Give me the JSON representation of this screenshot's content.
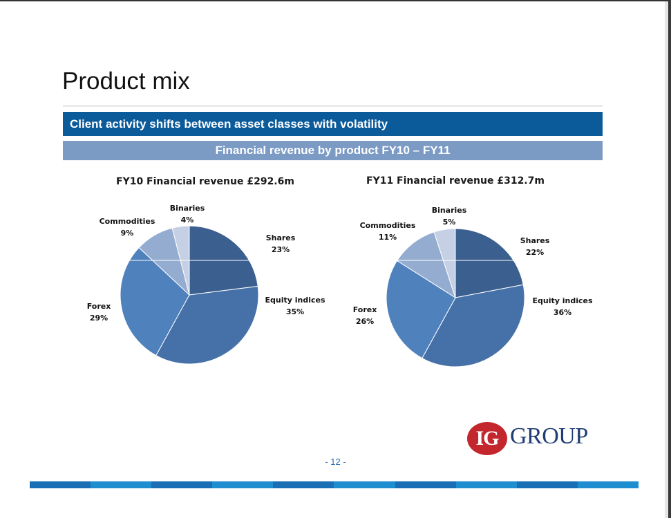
{
  "slide": {
    "title": "Product mix",
    "banner_primary": "Client activity shifts between asset classes with volatility",
    "banner_secondary": "Financial revenue by product FY10 – FY11",
    "page_number": "- 12 -",
    "logo": {
      "mark": "IG",
      "word": "GROUP",
      "mark_color": "#c3262c",
      "word_color": "#1f3c74"
    }
  },
  "colors": {
    "Shares": "#3b5f8f",
    "Equity indices": "#4671a8",
    "Forex": "#4f81bd",
    "Commodities": "#95acd1",
    "Binaries": "#c5d0e5"
  },
  "chart_data": [
    {
      "type": "pie",
      "title": "FY10 Financial  revenue £292.6m",
      "categories": [
        "Shares",
        "Equity indices",
        "Forex",
        "Commodities",
        "Binaries"
      ],
      "values": [
        23,
        35,
        29,
        9,
        4
      ],
      "labels": [
        "23%",
        "35%",
        "29%",
        "9%",
        "4%"
      ]
    },
    {
      "type": "pie",
      "title": "FY11 Financial  revenue £312.7m",
      "categories": [
        "Shares",
        "Equity indices",
        "Forex",
        "Commodities",
        "Binaries"
      ],
      "values": [
        22,
        36,
        26,
        11,
        5
      ],
      "labels": [
        "22%",
        "36%",
        "26%",
        "11%",
        "5%"
      ]
    }
  ],
  "footer_colors": [
    "#1a6fb4",
    "#1e8ed0",
    "#1a6fb4",
    "#1e8ed0",
    "#1a6fb4",
    "#1e8ed0",
    "#1a6fb4",
    "#1e8ed0",
    "#1a6fb4",
    "#1e8ed0"
  ]
}
